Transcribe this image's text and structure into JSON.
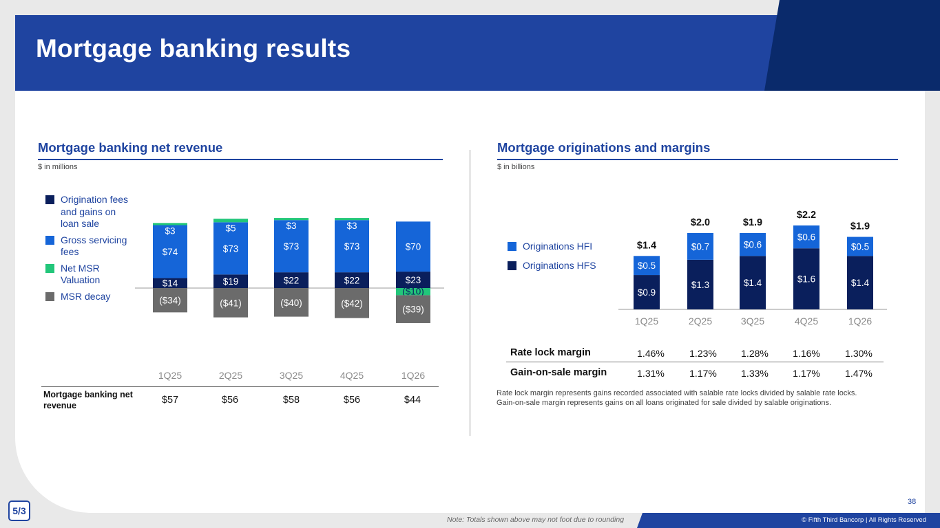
{
  "page": {
    "title": "Mortgage banking results",
    "page_number": "38",
    "note": "Note: Totals shown above may not foot due to rounding",
    "copyright": "© Fifth Third Bancorp | All Rights Reserved",
    "logo_text": "5/3"
  },
  "left": {
    "title": "Mortgage banking net revenue",
    "subtitle": "$ in millions",
    "legend": [
      {
        "label": "Origination fees and gains on loan sale",
        "color": "#0a1f5c"
      },
      {
        "label": "Gross servicing fees",
        "color": "#1565d8"
      },
      {
        "label": "Net MSR Valuation",
        "color": "#22c67a"
      },
      {
        "label": "MSR decay",
        "color": "#6b6b6b"
      }
    ],
    "revenue_label": "Mortgage banking net revenue",
    "revenue_values": [
      "$57",
      "$56",
      "$58",
      "$56",
      "$44"
    ]
  },
  "right": {
    "title": "Mortgage originations and margins",
    "subtitle": "$ in billions",
    "legend": [
      {
        "label": "Originations HFI",
        "color": "#1565d8"
      },
      {
        "label": "Originations HFS",
        "color": "#0a1f5c"
      }
    ],
    "rows": [
      {
        "label": "Rate lock margin",
        "values": [
          "1.46%",
          "1.23%",
          "1.28%",
          "1.16%",
          "1.30%"
        ]
      },
      {
        "label": "Gain-on-sale margin",
        "values": [
          "1.31%",
          "1.17%",
          "1.33%",
          "1.17%",
          "1.47%"
        ]
      }
    ],
    "footnote_1": "Rate lock margin represents gains recorded associated with salable rate locks divided by salable rate locks.",
    "footnote_2": "Gain-on-sale margin represents gains on all loans originated for sale divided by salable originations."
  },
  "chart_data": [
    {
      "type": "bar",
      "stacked": true,
      "title": "Mortgage banking net revenue",
      "ylabel": "$ in millions",
      "categories": [
        "1Q25",
        "2Q25",
        "3Q25",
        "4Q25",
        "1Q26"
      ],
      "series": [
        {
          "name": "Origination fees and gains on loan sale",
          "values": [
            14,
            19,
            22,
            22,
            23
          ],
          "labels": [
            "$14",
            "$19",
            "$22",
            "$22",
            "$23"
          ],
          "color": "#0a1f5c"
        },
        {
          "name": "Gross servicing fees",
          "values": [
            74,
            73,
            73,
            73,
            70
          ],
          "labels": [
            "$74",
            "$73",
            "$73",
            "$73",
            "$70"
          ],
          "color": "#1565d8"
        },
        {
          "name": "Net MSR Valuation",
          "values": [
            3,
            5,
            3,
            3,
            -10
          ],
          "labels": [
            "$3",
            "$5",
            "$3",
            "$3",
            "($10)"
          ],
          "color": "#22c67a"
        },
        {
          "name": "MSR decay",
          "values": [
            -34,
            -41,
            -40,
            -42,
            -39
          ],
          "labels": [
            "($34)",
            "($41)",
            "($40)",
            "($42)",
            "($39)"
          ],
          "color": "#6b6b6b"
        }
      ],
      "ylim": [
        -55,
        95
      ]
    },
    {
      "type": "bar",
      "stacked": true,
      "title": "Mortgage originations and margins",
      "ylabel": "$ in billions",
      "categories": [
        "1Q25",
        "2Q25",
        "3Q25",
        "4Q25",
        "1Q26"
      ],
      "series": [
        {
          "name": "Originations HFS",
          "values": [
            0.9,
            1.3,
            1.4,
            1.6,
            1.4
          ],
          "labels": [
            "$0.9",
            "$1.3",
            "$1.4",
            "$1.6",
            "$1.4"
          ],
          "color": "#0a1f5c"
        },
        {
          "name": "Originations HFI",
          "values": [
            0.5,
            0.7,
            0.6,
            0.6,
            0.5
          ],
          "labels": [
            "$0.5",
            "$0.7",
            "$0.6",
            "$0.6",
            "$0.5"
          ],
          "color": "#1565d8"
        }
      ],
      "totals": [
        "$1.4",
        "$2.0",
        "$1.9",
        "$2.2",
        "$1.9"
      ],
      "ylim": [
        0,
        2.2
      ]
    }
  ]
}
